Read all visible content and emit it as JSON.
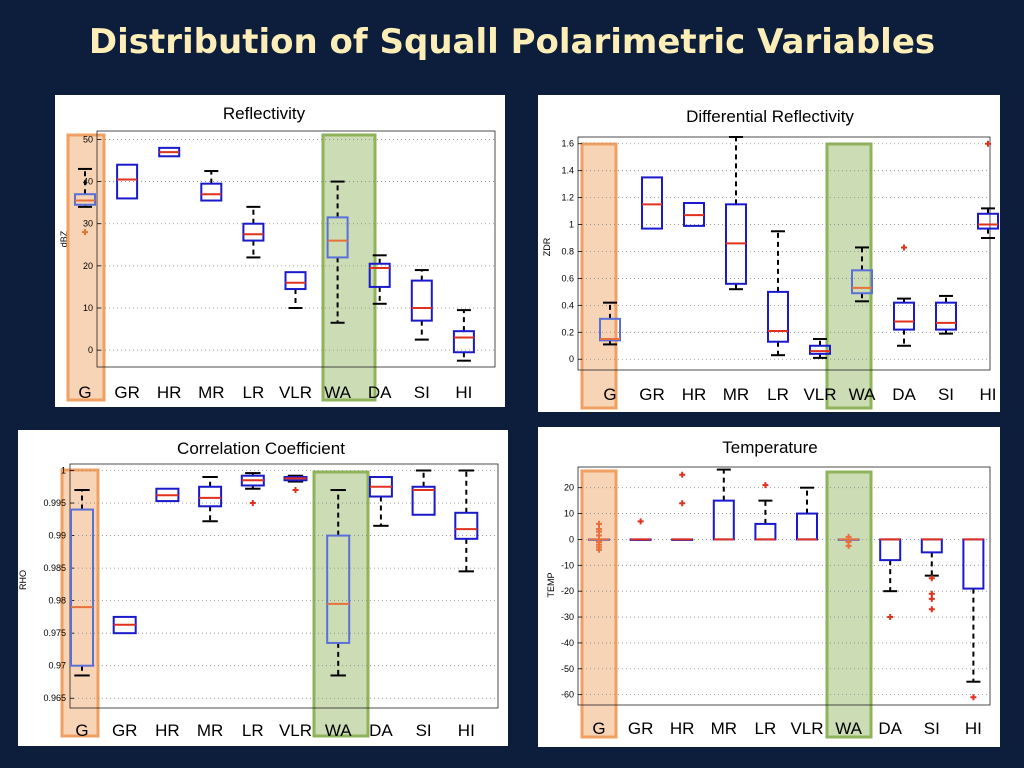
{
  "page": {
    "title": "Distribution of Squall Polarimetric Variables",
    "title_color": "#fdedb6",
    "box_color": "#1a1acc",
    "median_color": "#e0301e",
    "outlier_color": "#e0301e",
    "highlight_box_color": "#5a6fd8",
    "highlight_median_color": "#e8703a",
    "g_highlight_color": "#f0a060",
    "wa_highlight_color": "#8fb35a"
  },
  "chart_data": [
    {
      "type": "boxplot",
      "title": "Reflectivity",
      "ylabel": "dBZ",
      "ylim": [
        -4,
        52
      ],
      "yticks": [
        "0",
        "10",
        "20",
        "30",
        "40",
        "50"
      ],
      "ytick_values": [
        0,
        10,
        20,
        30,
        40,
        50
      ],
      "grid": true,
      "categories": [
        "G",
        "GR",
        "HR",
        "MR",
        "LR",
        "VLR",
        "WA",
        "DA",
        "SI",
        "HI"
      ],
      "highlighted": [
        "G",
        "WA"
      ],
      "boxes": [
        {
          "min": 34,
          "q1": 34.5,
          "median": 35.5,
          "q3": 37,
          "max": 43,
          "outliers": [
            28
          ]
        },
        {
          "min": 36,
          "q1": 36,
          "median": 40.5,
          "q3": 44,
          "max": 44,
          "outliers": []
        },
        {
          "min": 46,
          "q1": 46,
          "median": 47,
          "q3": 48,
          "max": 48,
          "outliers": []
        },
        {
          "min": 35.5,
          "q1": 35.5,
          "median": 37,
          "q3": 39.5,
          "max": 42.5,
          "outliers": []
        },
        {
          "min": 22,
          "q1": 26,
          "median": 27.5,
          "q3": 30,
          "max": 34,
          "outliers": []
        },
        {
          "min": 10,
          "q1": 14.5,
          "median": 16,
          "q3": 18.5,
          "max": 18.5,
          "outliers": []
        },
        {
          "min": 6.5,
          "q1": 22,
          "median": 26,
          "q3": 31.5,
          "max": 40,
          "outliers": []
        },
        {
          "min": 11,
          "q1": 15,
          "median": 19.5,
          "q3": 20.5,
          "max": 22.5,
          "outliers": []
        },
        {
          "min": 2.5,
          "q1": 7,
          "median": 10,
          "q3": 16.5,
          "max": 19,
          "outliers": []
        },
        {
          "min": -2.5,
          "q1": -0.5,
          "median": 3,
          "q3": 4.5,
          "max": 9.5,
          "outliers": []
        }
      ]
    },
    {
      "type": "boxplot",
      "title": "Differential Reflectivity",
      "ylabel": "ZDR",
      "ylim": [
        -0.08,
        1.65
      ],
      "yticks": [
        "0",
        "0.2",
        "0.4",
        "0.6",
        "0.8",
        "1",
        "1.2",
        "1.4",
        "1.6"
      ],
      "ytick_values": [
        0,
        0.2,
        0.4,
        0.6,
        0.8,
        1,
        1.2,
        1.4,
        1.6
      ],
      "grid": true,
      "categories": [
        "G",
        "GR",
        "HR",
        "MR",
        "LR",
        "VLR",
        "WA",
        "DA",
        "SI",
        "HI"
      ],
      "highlighted": [
        "G",
        "WA"
      ],
      "boxes": [
        {
          "min": 0.11,
          "q1": 0.14,
          "median": 0.15,
          "q3": 0.3,
          "max": 0.42,
          "outliers": []
        },
        {
          "min": 0.97,
          "q1": 0.97,
          "median": 1.15,
          "q3": 1.35,
          "max": 1.35,
          "outliers": []
        },
        {
          "min": 0.99,
          "q1": 0.99,
          "median": 1.07,
          "q3": 1.16,
          "max": 1.16,
          "outliers": []
        },
        {
          "min": 0.52,
          "q1": 0.56,
          "median": 0.86,
          "q3": 1.15,
          "max": 1.65,
          "outliers": []
        },
        {
          "min": 0.03,
          "q1": 0.13,
          "median": 0.21,
          "q3": 0.5,
          "max": 0.95,
          "outliers": []
        },
        {
          "min": 0.01,
          "q1": 0.04,
          "median": 0.06,
          "q3": 0.1,
          "max": 0.15,
          "outliers": []
        },
        {
          "min": 0.43,
          "q1": 0.49,
          "median": 0.53,
          "q3": 0.66,
          "max": 0.83,
          "outliers": []
        },
        {
          "min": 0.1,
          "q1": 0.22,
          "median": 0.28,
          "q3": 0.42,
          "max": 0.45,
          "outliers": [
            0.83
          ]
        },
        {
          "min": 0.19,
          "q1": 0.22,
          "median": 0.27,
          "q3": 0.42,
          "max": 0.47,
          "outliers": []
        },
        {
          "min": 0.9,
          "q1": 0.97,
          "median": 1.0,
          "q3": 1.08,
          "max": 1.12,
          "outliers": [
            1.6
          ]
        }
      ]
    },
    {
      "type": "boxplot",
      "title": "Correlation Coefficient",
      "ylabel": "RHO",
      "ylim": [
        0.9635,
        1.001
      ],
      "yticks": [
        "0.965",
        "0.97",
        "0.975",
        "0.98",
        "0.985",
        "0.99",
        "0.995",
        "1"
      ],
      "ytick_values": [
        0.965,
        0.97,
        0.975,
        0.98,
        0.985,
        0.99,
        0.995,
        1
      ],
      "grid": true,
      "categories": [
        "G",
        "GR",
        "HR",
        "MR",
        "LR",
        "VLR",
        "WA",
        "DA",
        "SI",
        "HI"
      ],
      "highlighted": [
        "G",
        "WA"
      ],
      "boxes": [
        {
          "min": 0.9685,
          "q1": 0.97,
          "median": 0.979,
          "q3": 0.994,
          "max": 0.997,
          "outliers": []
        },
        {
          "min": 0.975,
          "q1": 0.975,
          "median": 0.9763,
          "q3": 0.9775,
          "max": 0.9775,
          "outliers": []
        },
        {
          "min": 0.9953,
          "q1": 0.9953,
          "median": 0.9962,
          "q3": 0.9972,
          "max": 0.9972,
          "outliers": []
        },
        {
          "min": 0.9922,
          "q1": 0.9945,
          "median": 0.9958,
          "q3": 0.9975,
          "max": 0.999,
          "outliers": []
        },
        {
          "min": 0.9972,
          "q1": 0.9977,
          "median": 0.9985,
          "q3": 0.9992,
          "max": 0.9996,
          "outliers": [
            0.995
          ]
        },
        {
          "min": 0.9983,
          "q1": 0.9985,
          "median": 0.9988,
          "q3": 0.999,
          "max": 0.9992,
          "outliers": [
            0.997
          ]
        },
        {
          "min": 0.9685,
          "q1": 0.9735,
          "median": 0.9795,
          "q3": 0.99,
          "max": 0.997,
          "outliers": []
        },
        {
          "min": 0.9915,
          "q1": 0.996,
          "median": 0.9975,
          "q3": 0.999,
          "max": 0.999,
          "outliers": []
        },
        {
          "min": 0.9932,
          "q1": 0.9932,
          "median": 0.997,
          "q3": 0.9975,
          "max": 1.0,
          "outliers": []
        },
        {
          "min": 0.9845,
          "q1": 0.9895,
          "median": 0.991,
          "q3": 0.9935,
          "max": 1.0,
          "outliers": []
        }
      ]
    },
    {
      "type": "boxplot",
      "title": "Temperature",
      "ylabel": "TEMP",
      "ylim": [
        -64,
        28
      ],
      "yticks": [
        "-60",
        "-50",
        "-40",
        "-30",
        "-20",
        "-10",
        "0",
        "10",
        "20"
      ],
      "ytick_values": [
        -60,
        -50,
        -40,
        -30,
        -20,
        -10,
        0,
        10,
        20
      ],
      "grid": true,
      "categories": [
        "G",
        "GR",
        "HR",
        "MR",
        "LR",
        "VLR",
        "WA",
        "DA",
        "SI",
        "HI"
      ],
      "highlighted": [
        "G",
        "WA"
      ],
      "boxes": [
        {
          "min": 0,
          "q1": 0,
          "median": 0,
          "q3": 0,
          "max": 0,
          "outliers": [
            6,
            4,
            3,
            1.5,
            -1,
            -2,
            -3,
            -4
          ]
        },
        {
          "min": 0,
          "q1": 0,
          "median": 0,
          "q3": 0,
          "max": 0,
          "outliers": [
            7
          ]
        },
        {
          "min": 0,
          "q1": 0,
          "median": 0,
          "q3": 0,
          "max": 0,
          "outliers": [
            25,
            14
          ]
        },
        {
          "min": 0,
          "q1": 0,
          "median": 0,
          "q3": 15,
          "max": 27,
          "outliers": []
        },
        {
          "min": 0,
          "q1": 0,
          "median": 0,
          "q3": 6,
          "max": 15,
          "outliers": [
            21
          ]
        },
        {
          "min": 0,
          "q1": 0,
          "median": 0,
          "q3": 10,
          "max": 20,
          "outliers": []
        },
        {
          "min": 0,
          "q1": 0,
          "median": 0,
          "q3": 0,
          "max": 0,
          "outliers": [
            1,
            -1,
            -2.5
          ]
        },
        {
          "min": -20,
          "q1": -8,
          "median": 0,
          "q3": 0,
          "max": 0,
          "outliers": [
            -30
          ]
        },
        {
          "min": -14,
          "q1": -5,
          "median": 0,
          "q3": 0,
          "max": 0,
          "outliers": [
            -15,
            -21,
            -23,
            -27
          ]
        },
        {
          "min": -55,
          "q1": -19,
          "median": 0,
          "q3": 0,
          "max": 0,
          "outliers": [
            -61
          ]
        }
      ]
    }
  ]
}
